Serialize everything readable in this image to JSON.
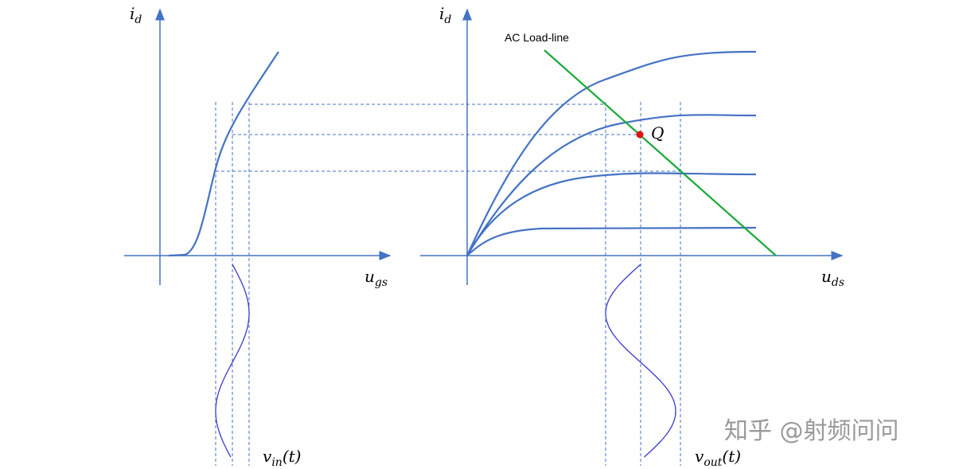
{
  "left_plot": {
    "y_label": {
      "base": "i",
      "sub": "d"
    },
    "x_label": {
      "base": "u",
      "sub": "gs"
    },
    "signal_label": {
      "base": "v",
      "sub": "in",
      "suffix": "(t)"
    }
  },
  "right_plot": {
    "y_label": {
      "base": "i",
      "sub": "d"
    },
    "x_label": {
      "base": "u",
      "sub": "ds"
    },
    "load_line_label": "AC Load-line",
    "q_point_label": "Q",
    "signal_label": {
      "base": "v",
      "sub": "out",
      "suffix": "(t)"
    }
  },
  "watermark": "知乎 @射频问问"
}
